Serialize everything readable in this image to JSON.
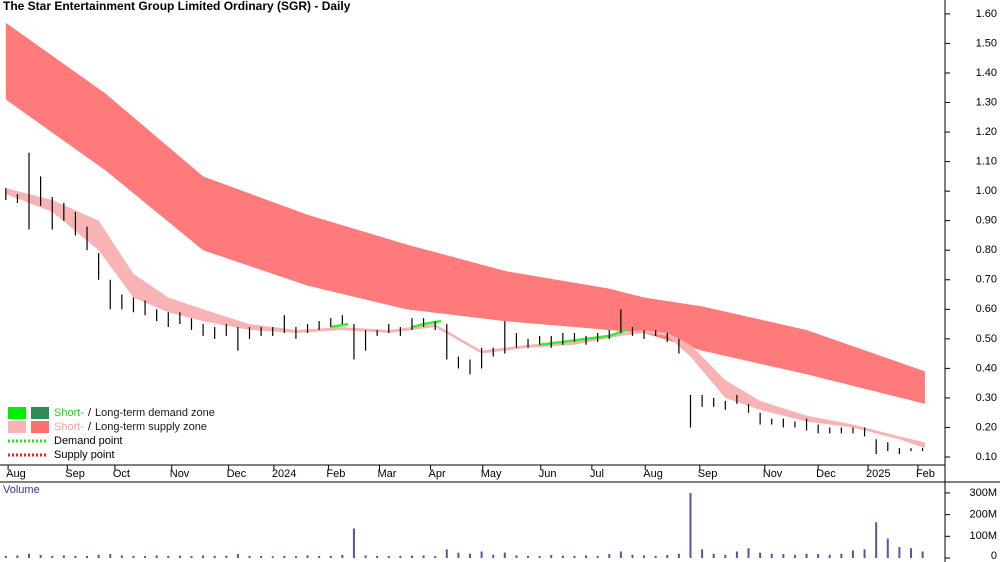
{
  "chart_data": [
    {
      "type": "ohlc",
      "title": "The Star Entertainment Group Limited Ordinary (SGR) - Daily",
      "color": "#000000",
      "x": [
        0,
        1,
        2,
        3,
        4,
        5,
        6,
        7,
        8,
        9,
        10,
        11,
        12,
        13,
        14,
        15,
        16,
        17,
        18,
        19,
        20,
        21,
        22,
        23,
        24,
        25,
        26,
        27,
        28,
        29,
        30,
        31,
        32,
        33,
        34,
        35,
        36,
        37,
        38,
        39,
        40,
        41,
        42,
        43,
        44,
        45,
        46,
        47,
        48,
        49,
        50,
        51,
        52,
        53,
        54,
        55,
        56,
        57,
        58,
        59,
        60,
        61,
        62,
        63,
        64,
        65,
        66,
        67,
        68,
        69,
        70,
        71,
        72,
        73,
        74,
        75,
        76,
        77,
        78,
        79
      ],
      "high": [
        1.01,
        0.99,
        1.13,
        1.05,
        0.98,
        0.96,
        0.93,
        0.88,
        0.79,
        0.7,
        0.65,
        0.64,
        0.63,
        0.6,
        0.59,
        0.59,
        0.57,
        0.55,
        0.54,
        0.55,
        0.54,
        0.54,
        0.54,
        0.54,
        0.58,
        0.54,
        0.55,
        0.56,
        0.57,
        0.58,
        0.55,
        0.53,
        0.53,
        0.55,
        0.54,
        0.57,
        0.57,
        0.56,
        0.55,
        0.44,
        0.43,
        0.47,
        0.47,
        0.56,
        0.52,
        0.5,
        0.51,
        0.51,
        0.52,
        0.52,
        0.51,
        0.52,
        0.53,
        0.6,
        0.54,
        0.53,
        0.53,
        0.52,
        0.5,
        0.31,
        0.31,
        0.3,
        0.29,
        0.31,
        0.28,
        0.25,
        0.23,
        0.23,
        0.22,
        0.23,
        0.21,
        0.2,
        0.2,
        0.2,
        0.2,
        0.16,
        0.15,
        0.13,
        0.13,
        0.13
      ],
      "low": [
        0.97,
        0.96,
        0.87,
        0.95,
        0.87,
        0.9,
        0.85,
        0.8,
        0.7,
        0.6,
        0.6,
        0.59,
        0.58,
        0.56,
        0.54,
        0.55,
        0.53,
        0.51,
        0.5,
        0.51,
        0.46,
        0.5,
        0.51,
        0.51,
        0.52,
        0.5,
        0.52,
        0.53,
        0.54,
        0.55,
        0.43,
        0.46,
        0.51,
        0.52,
        0.51,
        0.53,
        0.54,
        0.53,
        0.43,
        0.4,
        0.38,
        0.4,
        0.44,
        0.45,
        0.47,
        0.47,
        0.48,
        0.47,
        0.48,
        0.49,
        0.48,
        0.49,
        0.5,
        0.52,
        0.51,
        0.5,
        0.51,
        0.49,
        0.45,
        0.2,
        0.27,
        0.27,
        0.26,
        0.28,
        0.25,
        0.21,
        0.21,
        0.2,
        0.2,
        0.19,
        0.18,
        0.18,
        0.18,
        0.18,
        0.17,
        0.11,
        0.12,
        0.11,
        0.12,
        0.12
      ],
      "xlim": [
        -0.5,
        80.5
      ],
      "xticks": [
        {
          "value": 0.2,
          "label": "Aug"
        },
        {
          "value": 5.3,
          "label": "Sep"
        },
        {
          "value": 9.4,
          "label": "Oct"
        },
        {
          "value": 14.3,
          "label": "Nov"
        },
        {
          "value": 19.2,
          "label": "Dec"
        },
        {
          "value": 23.1,
          "label": "2024"
        },
        {
          "value": 27.8,
          "label": "Feb"
        },
        {
          "value": 32.2,
          "label": "Mar"
        },
        {
          "value": 36.6,
          "label": "Apr"
        },
        {
          "value": 41.1,
          "label": "May"
        },
        {
          "value": 46.1,
          "label": "Jun"
        },
        {
          "value": 50.5,
          "label": "Jul"
        },
        {
          "value": 55.1,
          "label": "Aug"
        },
        {
          "value": 59.8,
          "label": "Sep"
        },
        {
          "value": 65.4,
          "label": "Nov"
        },
        {
          "value": 70.0,
          "label": "Dec"
        },
        {
          "value": 74.3,
          "label": "2025"
        },
        {
          "value": 78.6,
          "label": "Feb"
        }
      ],
      "ylim": [
        0.073,
        1.647
      ],
      "yticks": [
        {
          "value": 0.1,
          "label": "0.10"
        },
        {
          "value": 0.2,
          "label": "0.20"
        },
        {
          "value": 0.3,
          "label": "0.30"
        },
        {
          "value": 0.4,
          "label": "0.40"
        },
        {
          "value": 0.5,
          "label": "0.50"
        },
        {
          "value": 0.6,
          "label": "0.60"
        },
        {
          "value": 0.7,
          "label": "0.70"
        },
        {
          "value": 0.8,
          "label": "0.80"
        },
        {
          "value": 0.9,
          "label": "0.90"
        },
        {
          "value": 1.0,
          "label": "1.00"
        },
        {
          "value": 1.1,
          "label": "1.10"
        },
        {
          "value": 1.2,
          "label": "1.20"
        },
        {
          "value": 1.3,
          "label": "1.30"
        },
        {
          "value": 1.4,
          "label": "1.40"
        },
        {
          "value": 1.5,
          "label": "1.50"
        },
        {
          "value": 1.6,
          "label": "1.60"
        }
      ],
      "bands": [
        {
          "color": "#ff7b7b",
          "x": [
            0,
            8.6,
            17,
            26,
            34.5,
            43,
            52,
            55,
            60,
            69,
            79.2
          ],
          "upper": [
            1.57,
            1.33,
            1.05,
            0.92,
            0.82,
            0.73,
            0.67,
            0.64,
            0.61,
            0.53,
            0.39
          ],
          "lower": [
            1.31,
            1.07,
            0.8,
            0.68,
            0.6,
            0.56,
            0.53,
            0.52,
            0.46,
            0.38,
            0.28
          ]
        },
        {
          "color": "#f8b4b4",
          "x": [
            0,
            4,
            8,
            11,
            14,
            17,
            21,
            25,
            29,
            33,
            37,
            41,
            45,
            49,
            53,
            55,
            57,
            59,
            62,
            65,
            69,
            73,
            77,
            79.2
          ],
          "upper": [
            1.01,
            0.97,
            0.9,
            0.72,
            0.64,
            0.6,
            0.55,
            0.53,
            0.54,
            0.53,
            0.55,
            0.46,
            0.48,
            0.49,
            0.52,
            0.53,
            0.52,
            0.48,
            0.36,
            0.29,
            0.24,
            0.21,
            0.17,
            0.15
          ],
          "lower": [
            0.99,
            0.93,
            0.8,
            0.64,
            0.59,
            0.56,
            0.53,
            0.52,
            0.53,
            0.52,
            0.54,
            0.45,
            0.47,
            0.48,
            0.51,
            0.52,
            0.51,
            0.44,
            0.3,
            0.26,
            0.22,
            0.2,
            0.16,
            0.13
          ]
        }
      ],
      "lines": [
        {
          "color": "#33ee33",
          "x": [
            28,
            29.5,
            30,
            35,
            36,
            37.5,
            38,
            46,
            48,
            50,
            52,
            53.5
          ],
          "values": [
            0.54,
            0.55,
            null,
            0.54,
            0.55,
            0.56,
            null,
            0.48,
            0.49,
            0.5,
            0.51,
            0.53
          ]
        }
      ],
      "legend": [
        {
          "swatches": [
            "#00ee00",
            "#2e8b57"
          ],
          "parts": [
            {
              "text": "Short-",
              "color": "#22cc22"
            },
            {
              "text": "/",
              "color": "#000000"
            },
            {
              "text": "Long-term demand zone",
              "color": "#1a1a1a"
            }
          ]
        },
        {
          "swatches": [
            "#f8b4b4",
            "#ff6f6f"
          ],
          "parts": [
            {
              "text": "Short-",
              "color": "#f4a0a0"
            },
            {
              "text": "/",
              "color": "#000000"
            },
            {
              "text": "Long-term supply zone",
              "color": "#1a1a1a"
            }
          ]
        },
        {
          "dotted": "#22dd22",
          "parts": [
            {
              "text": "Demand point",
              "color": "#000000"
            }
          ]
        },
        {
          "dotted": "#ee2222",
          "parts": [
            {
              "text": "Supply point",
              "color": "#000000"
            }
          ]
        }
      ]
    },
    {
      "type": "bar",
      "title": "Volume",
      "color": "#5555aa",
      "x": [
        0,
        1,
        2,
        3,
        4,
        5,
        6,
        7,
        8,
        9,
        10,
        11,
        12,
        13,
        14,
        15,
        16,
        17,
        18,
        19,
        20,
        21,
        22,
        23,
        24,
        25,
        26,
        27,
        28,
        29,
        30,
        31,
        32,
        33,
        34,
        35,
        36,
        37,
        38,
        39,
        40,
        41,
        42,
        43,
        44,
        45,
        46,
        47,
        48,
        49,
        50,
        51,
        52,
        53,
        54,
        55,
        56,
        57,
        58,
        59,
        60,
        61,
        62,
        63,
        64,
        65,
        66,
        67,
        68,
        69,
        70,
        71,
        72,
        73,
        74,
        75,
        76,
        77,
        78,
        79
      ],
      "values": [
        10000000,
        12000000,
        20000000,
        14000000,
        10000000,
        12000000,
        10000000,
        9000000,
        15000000,
        18000000,
        12000000,
        10000000,
        9000000,
        12000000,
        10000000,
        11000000,
        9000000,
        12000000,
        10000000,
        11000000,
        18000000,
        10000000,
        9000000,
        8000000,
        10000000,
        9000000,
        12000000,
        9000000,
        10000000,
        14000000,
        136000000,
        12000000,
        10000000,
        9000000,
        10000000,
        11000000,
        12000000,
        9000000,
        40000000,
        25000000,
        20000000,
        30000000,
        15000000,
        25000000,
        12000000,
        10000000,
        9000000,
        14000000,
        11000000,
        10000000,
        12000000,
        10000000,
        18000000,
        30000000,
        15000000,
        12000000,
        10000000,
        14000000,
        20000000,
        300000000,
        40000000,
        20000000,
        15000000,
        30000000,
        45000000,
        25000000,
        20000000,
        18000000,
        15000000,
        20000000,
        18000000,
        15000000,
        20000000,
        35000000,
        40000000,
        165000000,
        90000000,
        50000000,
        45000000,
        30000000
      ],
      "xlim": [
        -0.5,
        80.5
      ],
      "ylim": [
        0,
        332000000
      ],
      "yticks": [
        0,
        {
          "value": 100000000,
          "label": "100M"
        },
        {
          "value": 200000000,
          "label": "200M"
        },
        {
          "value": 300000000,
          "label": "300M"
        }
      ]
    }
  ]
}
